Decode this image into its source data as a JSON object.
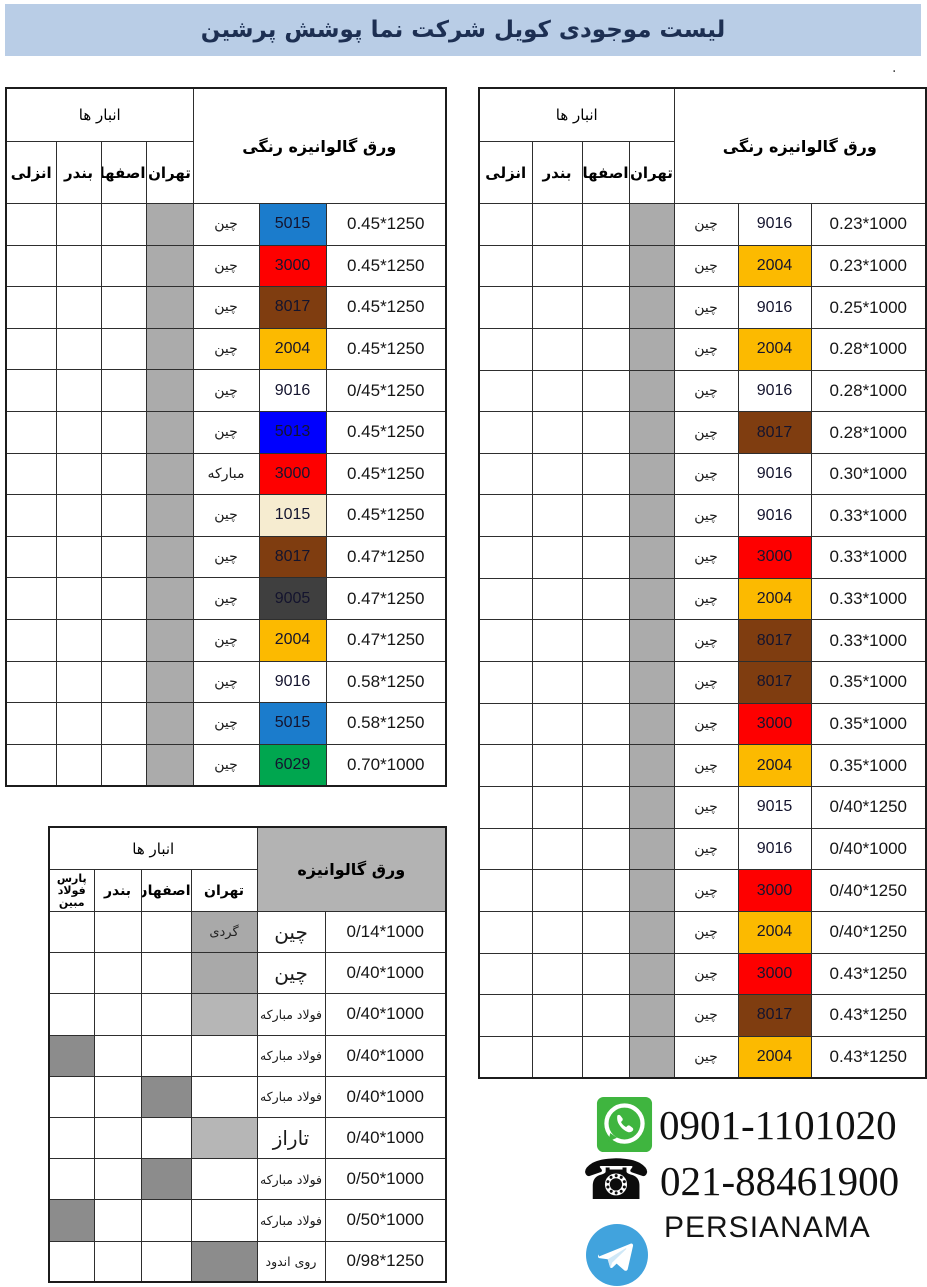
{
  "title": "لیست موجودی کویل شرکت نما پوشش پرشین",
  "stray_dot": ".",
  "warehouses_label": "انبار ها",
  "ral_colors": {
    "5015": "#1b7ccc",
    "3000": "#fe0000",
    "8017": "#7f3d10",
    "2004": "#fcba00",
    "9016": "#ffffff",
    "9015": "#ffffff",
    "5013": "#0000fe",
    "1015": "#f6ecd0",
    "9005": "#3f3f3f",
    "6029": "#00a64f"
  },
  "grays": {
    "tehran_column": "#ababab",
    "dark": "#8c8c8c",
    "mid": "#a9a9a9",
    "light": "#b6b6b6",
    "bottom_header": "#b3b3b3"
  },
  "left_table": {
    "product_label": "ورق گالوانیزه رنگی",
    "warehouse_columns": [
      "انزلی",
      "بندر",
      "اصفهان",
      "تهران"
    ],
    "rows": [
      {
        "origin": "چین",
        "code": "5015",
        "size": "0.45*1250"
      },
      {
        "origin": "چین",
        "code": "3000",
        "size": "0.45*1250"
      },
      {
        "origin": "چین",
        "code": "8017",
        "size": "0.45*1250"
      },
      {
        "origin": "چین",
        "code": "2004",
        "size": "0.45*1250"
      },
      {
        "origin": "چین",
        "code": "9016",
        "size": "0/45*1250"
      },
      {
        "origin": "چین",
        "code": "5013",
        "size": "0.45*1250"
      },
      {
        "origin": "مبارکه",
        "code": "3000",
        "size": "0.45*1250"
      },
      {
        "origin": "چین",
        "code": "1015",
        "size": "0.45*1250"
      },
      {
        "origin": "چین",
        "code": "8017",
        "size": "0.47*1250"
      },
      {
        "origin": "چین",
        "code": "9005",
        "size": "0.47*1250"
      },
      {
        "origin": "چین",
        "code": "2004",
        "size": "0.47*1250"
      },
      {
        "origin": "چین",
        "code": "9016",
        "size": "0.58*1250"
      },
      {
        "origin": "چین",
        "code": "5015",
        "size": "0.58*1250"
      },
      {
        "origin": "چین",
        "code": "6029",
        "size": "0.70*1000"
      }
    ]
  },
  "right_table": {
    "product_label": "ورق گالوانیزه رنگی",
    "warehouse_columns": [
      "انزلی",
      "بندر",
      "اصفهان",
      "تهران"
    ],
    "rows": [
      {
        "origin": "چین",
        "code": "9016",
        "size": "0.23*1000"
      },
      {
        "origin": "چین",
        "code": "2004",
        "size": "0.23*1000"
      },
      {
        "origin": "چین",
        "code": "9016",
        "size": "0.25*1000"
      },
      {
        "origin": "چین",
        "code": "2004",
        "size": "0.28*1000"
      },
      {
        "origin": "چین",
        "code": "9016",
        "size": "0.28*1000"
      },
      {
        "origin": "چین",
        "code": "8017",
        "size": "0.28*1000"
      },
      {
        "origin": "چین",
        "code": "9016",
        "size": "0.30*1000"
      },
      {
        "origin": "چین",
        "code": "9016",
        "size": "0.33*1000"
      },
      {
        "origin": "چین",
        "code": "3000",
        "size": "0.33*1000"
      },
      {
        "origin": "چین",
        "code": "2004",
        "size": "0.33*1000"
      },
      {
        "origin": "چین",
        "code": "8017",
        "size": "0.33*1000"
      },
      {
        "origin": "چین",
        "code": "8017",
        "size": "0.35*1000"
      },
      {
        "origin": "چین",
        "code": "3000",
        "size": "0.35*1000"
      },
      {
        "origin": "چین",
        "code": "2004",
        "size": "0.35*1000"
      },
      {
        "origin": "چین",
        "code": "9015",
        "size": "0/40*1250"
      },
      {
        "origin": "چین",
        "code": "9016",
        "size": "0/40*1000"
      },
      {
        "origin": "چین",
        "code": "3000",
        "size": "0/40*1250"
      },
      {
        "origin": "چین",
        "code": "2004",
        "size": "0/40*1250"
      },
      {
        "origin": "چین",
        "code": "3000",
        "size": "0.43*1250"
      },
      {
        "origin": "چین",
        "code": "8017",
        "size": "0.43*1250"
      },
      {
        "origin": "چین",
        "code": "2004",
        "size": "0.43*1250"
      }
    ]
  },
  "bottom_table": {
    "product_label": "ورق گالوانیزه",
    "warehouse_columns": [
      "پارس فولاد مبین",
      "بندر",
      "اصفهان",
      "تهران"
    ],
    "rows": [
      {
        "origin": "چین",
        "size": "0/14*1000",
        "big": true,
        "highlight": "tehran",
        "shade": "mid",
        "mark": "گردی"
      },
      {
        "origin": "چین",
        "size": "0/40*1000",
        "big": true,
        "highlight": "tehran",
        "shade": "mid"
      },
      {
        "origin": "فولاد مبارکه",
        "size": "0/40*1000",
        "small": true,
        "highlight": "tehran",
        "shade": "light"
      },
      {
        "origin": "فولاد مبارکه",
        "size": "0/40*1000",
        "small": true,
        "highlight": "pars",
        "shade": "dark"
      },
      {
        "origin": "فولاد مبارکه",
        "size": "0/40*1000",
        "small": true,
        "highlight": "esfahan",
        "shade": "dark"
      },
      {
        "origin": "تاراز",
        "size": "0/40*1000",
        "big": true,
        "highlight": "tehran",
        "shade": "light"
      },
      {
        "origin": "فولاد مبارکه",
        "size": "0/50*1000",
        "small": true,
        "highlight": "esfahan",
        "shade": "dark"
      },
      {
        "origin": "فولاد مبارکه",
        "size": "0/50*1000",
        "small": true,
        "highlight": "pars",
        "shade": "dark"
      },
      {
        "origin": "روی اندود",
        "size": "0/98*1250",
        "small": true,
        "highlight": "tehran",
        "shade": "dark"
      }
    ]
  },
  "contact": {
    "whatsapp_number": "0901-1101020",
    "phone_number": "021-88461900",
    "brand": "PERSIANAMA",
    "whatsapp_green": "#3fb53f",
    "telegram_blue": "#41a3dd"
  }
}
